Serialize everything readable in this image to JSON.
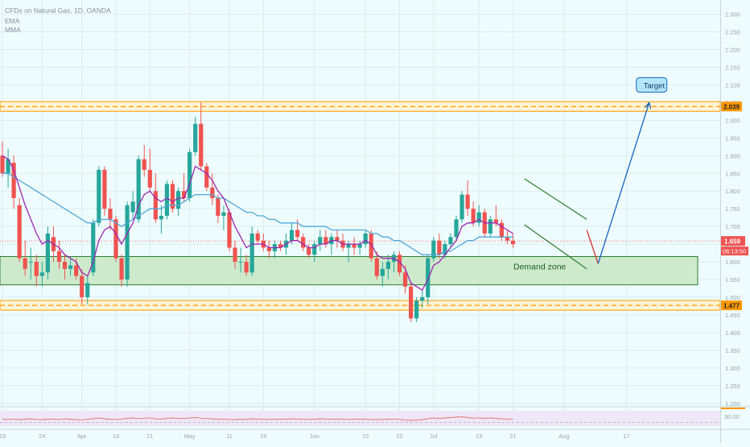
{
  "header": {
    "symbol_line": "CFDs on Natural Gas, 1D, OANDA",
    "indicator_1": "EMA",
    "indicator_2": "MMA"
  },
  "colors": {
    "background": "#eefcfd",
    "bull": "#26a69a",
    "bear": "#ef5350",
    "ema_line": "#4fa8d8",
    "mma_line": "#9c27b0",
    "level_line": "#ff9800",
    "demand_fill": "#cdeacd",
    "channel_line": "#4caf50",
    "projection_line": "#1565c0",
    "target_label_bg": "#b3e5fc"
  },
  "chart_data": {
    "type": "candlestick",
    "instrument": "CFDs on Natural Gas",
    "interval": "1D",
    "source": "OANDA",
    "y_axis": {
      "ylim": [
        1.195,
        2.34
      ],
      "ticks": [
        2.3,
        2.25,
        2.2,
        2.15,
        2.1,
        2.05,
        2.0,
        1.95,
        1.9,
        1.85,
        1.8,
        1.75,
        1.7,
        1.65,
        1.6,
        1.55,
        1.5,
        1.45,
        1.4,
        1.35,
        1.3,
        1.25,
        1.2
      ],
      "tick_labels": [
        "2.300",
        "2.250",
        "2.200",
        "2.150",
        "2.100",
        "2.050",
        "2.000",
        "1.950",
        "1.900",
        "1.850",
        "1.800",
        "1.750",
        "1.700",
        "1.650",
        "1.600",
        "1.550",
        "1.500",
        "1.450",
        "1.400",
        "1.350",
        "1.300",
        "1.250",
        "1.200"
      ]
    },
    "x_axis": {
      "ticks": [
        {
          "label": "19",
          "i": 0
        },
        {
          "label": "24",
          "i": 7
        },
        {
          "label": "Apr",
          "i": 14
        },
        {
          "label": "13",
          "i": 20
        },
        {
          "label": "21",
          "i": 26
        },
        {
          "label": "May",
          "i": 33
        },
        {
          "label": "11",
          "i": 40
        },
        {
          "label": "19",
          "i": 46
        },
        {
          "label": "Jun",
          "i": 55
        },
        {
          "label": "15",
          "i": 64
        },
        {
          "label": "22",
          "i": 70
        },
        {
          "label": "Jul",
          "i": 76
        },
        {
          "label": "13",
          "i": 84
        },
        {
          "label": "21",
          "i": 90
        },
        {
          "label": "Aug",
          "i": 99
        },
        {
          "label": "17",
          "i": 110
        }
      ]
    },
    "candles": [
      [
        1.9,
        1.94,
        1.84,
        1.85
      ],
      [
        1.85,
        1.92,
        1.81,
        1.89
      ],
      [
        1.88,
        1.9,
        1.75,
        1.78
      ],
      [
        1.76,
        1.78,
        1.6,
        1.61
      ],
      [
        1.61,
        1.66,
        1.56,
        1.58
      ],
      [
        1.6,
        1.64,
        1.55,
        1.6
      ],
      [
        1.6,
        1.62,
        1.53,
        1.56
      ],
      [
        1.56,
        1.6,
        1.53,
        1.57
      ],
      [
        1.57,
        1.7,
        1.55,
        1.68
      ],
      [
        1.67,
        1.7,
        1.6,
        1.63
      ],
      [
        1.63,
        1.66,
        1.58,
        1.6
      ],
      [
        1.6,
        1.62,
        1.55,
        1.58
      ],
      [
        1.58,
        1.61,
        1.56,
        1.59
      ],
      [
        1.59,
        1.61,
        1.55,
        1.56
      ],
      [
        1.56,
        1.58,
        1.48,
        1.5
      ],
      [
        1.5,
        1.56,
        1.48,
        1.54
      ],
      [
        1.57,
        1.72,
        1.56,
        1.71
      ],
      [
        1.71,
        1.87,
        1.7,
        1.86
      ],
      [
        1.86,
        1.87,
        1.73,
        1.75
      ],
      [
        1.75,
        1.78,
        1.69,
        1.72
      ],
      [
        1.72,
        1.73,
        1.6,
        1.61
      ],
      [
        1.61,
        1.62,
        1.53,
        1.55
      ],
      [
        1.55,
        1.77,
        1.53,
        1.76
      ],
      [
        1.74,
        1.8,
        1.72,
        1.77
      ],
      [
        1.72,
        1.9,
        1.71,
        1.89
      ],
      [
        1.89,
        1.93,
        1.84,
        1.86
      ],
      [
        1.86,
        1.92,
        1.8,
        1.81
      ],
      [
        1.8,
        1.85,
        1.71,
        1.72
      ],
      [
        1.72,
        1.76,
        1.68,
        1.73
      ],
      [
        1.73,
        1.83,
        1.72,
        1.82
      ],
      [
        1.82,
        1.83,
        1.74,
        1.75
      ],
      [
        1.75,
        1.81,
        1.73,
        1.8
      ],
      [
        1.8,
        1.85,
        1.77,
        1.78
      ],
      [
        1.78,
        1.92,
        1.77,
        1.91
      ],
      [
        1.91,
        2.01,
        1.9,
        1.99
      ],
      [
        1.99,
        2.05,
        1.86,
        1.87
      ],
      [
        1.87,
        1.88,
        1.8,
        1.81
      ],
      [
        1.81,
        1.85,
        1.76,
        1.78
      ],
      [
        1.78,
        1.79,
        1.71,
        1.73
      ],
      [
        1.73,
        1.76,
        1.69,
        1.74
      ],
      [
        1.74,
        1.75,
        1.63,
        1.64
      ],
      [
        1.64,
        1.66,
        1.58,
        1.6
      ],
      [
        1.6,
        1.64,
        1.57,
        1.6
      ],
      [
        1.6,
        1.62,
        1.56,
        1.57
      ],
      [
        1.57,
        1.7,
        1.56,
        1.68
      ],
      [
        1.68,
        1.69,
        1.65,
        1.66
      ],
      [
        1.66,
        1.68,
        1.63,
        1.64
      ],
      [
        1.64,
        1.66,
        1.61,
        1.63
      ],
      [
        1.63,
        1.66,
        1.61,
        1.65
      ],
      [
        1.65,
        1.66,
        1.63,
        1.64
      ],
      [
        1.64,
        1.68,
        1.62,
        1.66
      ],
      [
        1.66,
        1.71,
        1.65,
        1.69
      ],
      [
        1.69,
        1.72,
        1.66,
        1.67
      ],
      [
        1.67,
        1.68,
        1.63,
        1.64
      ],
      [
        1.64,
        1.65,
        1.61,
        1.62
      ],
      [
        1.62,
        1.66,
        1.6,
        1.65
      ],
      [
        1.65,
        1.69,
        1.63,
        1.67
      ],
      [
        1.67,
        1.69,
        1.64,
        1.65
      ],
      [
        1.65,
        1.68,
        1.62,
        1.67
      ],
      [
        1.67,
        1.69,
        1.64,
        1.66
      ],
      [
        1.66,
        1.68,
        1.63,
        1.64
      ],
      [
        1.64,
        1.66,
        1.6,
        1.65
      ],
      [
        1.65,
        1.67,
        1.62,
        1.64
      ],
      [
        1.64,
        1.66,
        1.62,
        1.65
      ],
      [
        1.65,
        1.69,
        1.64,
        1.68
      ],
      [
        1.68,
        1.69,
        1.6,
        1.61
      ],
      [
        1.61,
        1.63,
        1.55,
        1.56
      ],
      [
        1.56,
        1.6,
        1.53,
        1.58
      ],
      [
        1.58,
        1.62,
        1.55,
        1.6
      ],
      [
        1.6,
        1.63,
        1.57,
        1.62
      ],
      [
        1.62,
        1.63,
        1.56,
        1.57
      ],
      [
        1.57,
        1.59,
        1.51,
        1.53
      ],
      [
        1.53,
        1.54,
        1.43,
        1.44
      ],
      [
        1.44,
        1.5,
        1.43,
        1.49
      ],
      [
        1.49,
        1.52,
        1.47,
        1.5
      ],
      [
        1.5,
        1.62,
        1.48,
        1.61
      ],
      [
        1.61,
        1.67,
        1.6,
        1.66
      ],
      [
        1.66,
        1.68,
        1.61,
        1.62
      ],
      [
        1.62,
        1.66,
        1.61,
        1.65
      ],
      [
        1.65,
        1.68,
        1.64,
        1.67
      ],
      [
        1.67,
        1.73,
        1.66,
        1.72
      ],
      [
        1.72,
        1.8,
        1.71,
        1.79
      ],
      [
        1.79,
        1.83,
        1.73,
        1.75
      ],
      [
        1.75,
        1.77,
        1.7,
        1.71
      ],
      [
        1.71,
        1.76,
        1.7,
        1.74
      ],
      [
        1.74,
        1.75,
        1.67,
        1.68
      ],
      [
        1.68,
        1.73,
        1.67,
        1.72
      ],
      [
        1.72,
        1.76,
        1.7,
        1.71
      ],
      [
        1.71,
        1.72,
        1.66,
        1.67
      ],
      [
        1.67,
        1.69,
        1.65,
        1.66
      ],
      [
        1.66,
        1.68,
        1.64,
        1.65
      ]
    ],
    "ema_values": [
      1.85,
      1.85,
      1.84,
      1.83,
      1.82,
      1.81,
      1.8,
      1.79,
      1.78,
      1.77,
      1.76,
      1.75,
      1.74,
      1.73,
      1.72,
      1.71,
      1.71,
      1.72,
      1.72,
      1.72,
      1.71,
      1.7,
      1.71,
      1.72,
      1.73,
      1.74,
      1.75,
      1.75,
      1.75,
      1.76,
      1.76,
      1.76,
      1.77,
      1.78,
      1.79,
      1.79,
      1.79,
      1.79,
      1.78,
      1.78,
      1.77,
      1.76,
      1.75,
      1.74,
      1.74,
      1.73,
      1.73,
      1.72,
      1.72,
      1.71,
      1.71,
      1.71,
      1.71,
      1.7,
      1.7,
      1.7,
      1.7,
      1.7,
      1.69,
      1.69,
      1.69,
      1.69,
      1.69,
      1.69,
      1.69,
      1.68,
      1.68,
      1.67,
      1.67,
      1.66,
      1.66,
      1.65,
      1.64,
      1.63,
      1.62,
      1.62,
      1.62,
      1.62,
      1.63,
      1.63,
      1.64,
      1.65,
      1.66,
      1.66,
      1.67,
      1.67,
      1.67,
      1.67,
      1.67,
      1.67,
      1.67
    ],
    "mma_values": [
      1.9,
      1.89,
      1.86,
      1.81,
      1.76,
      1.72,
      1.68,
      1.65,
      1.66,
      1.65,
      1.64,
      1.62,
      1.61,
      1.6,
      1.57,
      1.56,
      1.6,
      1.66,
      1.69,
      1.7,
      1.68,
      1.65,
      1.68,
      1.71,
      1.76,
      1.79,
      1.8,
      1.78,
      1.77,
      1.78,
      1.77,
      1.78,
      1.78,
      1.82,
      1.87,
      1.86,
      1.85,
      1.83,
      1.8,
      1.78,
      1.74,
      1.7,
      1.67,
      1.64,
      1.65,
      1.65,
      1.65,
      1.64,
      1.64,
      1.64,
      1.65,
      1.66,
      1.66,
      1.65,
      1.64,
      1.64,
      1.65,
      1.65,
      1.66,
      1.66,
      1.65,
      1.65,
      1.65,
      1.65,
      1.66,
      1.65,
      1.62,
      1.61,
      1.61,
      1.61,
      1.6,
      1.58,
      1.54,
      1.53,
      1.52,
      1.55,
      1.59,
      1.6,
      1.62,
      1.64,
      1.66,
      1.7,
      1.71,
      1.71,
      1.72,
      1.71,
      1.71,
      1.71,
      1.7,
      1.69,
      1.68
    ],
    "resistance_level": {
      "value": 2.039,
      "label": "2.039"
    },
    "support_level": {
      "value": 1.477,
      "label": "1.477"
    },
    "current_price": {
      "value": 1.659,
      "label": "1.659",
      "countdown": "08:13:50"
    },
    "demand_zone": {
      "top": 1.615,
      "bottom": 1.535,
      "label": "Demand zone"
    },
    "channel": {
      "upper": {
        "from": [
          92,
          1.835
        ],
        "to": [
          103,
          1.72
        ]
      },
      "lower": {
        "from": [
          92,
          1.705
        ],
        "to": [
          103,
          1.58
        ]
      }
    },
    "projection": {
      "path": [
        [
          103,
          1.69
        ],
        [
          105,
          1.595
        ],
        [
          114,
          2.05
        ]
      ],
      "target_label": "Target",
      "target_anchor": [
        114,
        2.1
      ]
    },
    "oscillator": {
      "label": "30.00",
      "ylim": [
        0,
        100
      ],
      "level": 30,
      "values": [
        46,
        45,
        47,
        44,
        46,
        48,
        45,
        44,
        47,
        46,
        45,
        48,
        46,
        44,
        43,
        46,
        49,
        52,
        48,
        46,
        45,
        47,
        50,
        52,
        49,
        51,
        53,
        48,
        47,
        50,
        52,
        50,
        49,
        52,
        55,
        51,
        49,
        48,
        46,
        47,
        45,
        44,
        46,
        45,
        48,
        47,
        46,
        45,
        46,
        47,
        46,
        48,
        47,
        46,
        45,
        46,
        48,
        47,
        46,
        47,
        46,
        45,
        46,
        47,
        46,
        45,
        44,
        45,
        46,
        47,
        45,
        43,
        40,
        42,
        44,
        48,
        52,
        50,
        52,
        54,
        56,
        58,
        54,
        51,
        53,
        50,
        52,
        50,
        48,
        47,
        46
      ]
    }
  }
}
